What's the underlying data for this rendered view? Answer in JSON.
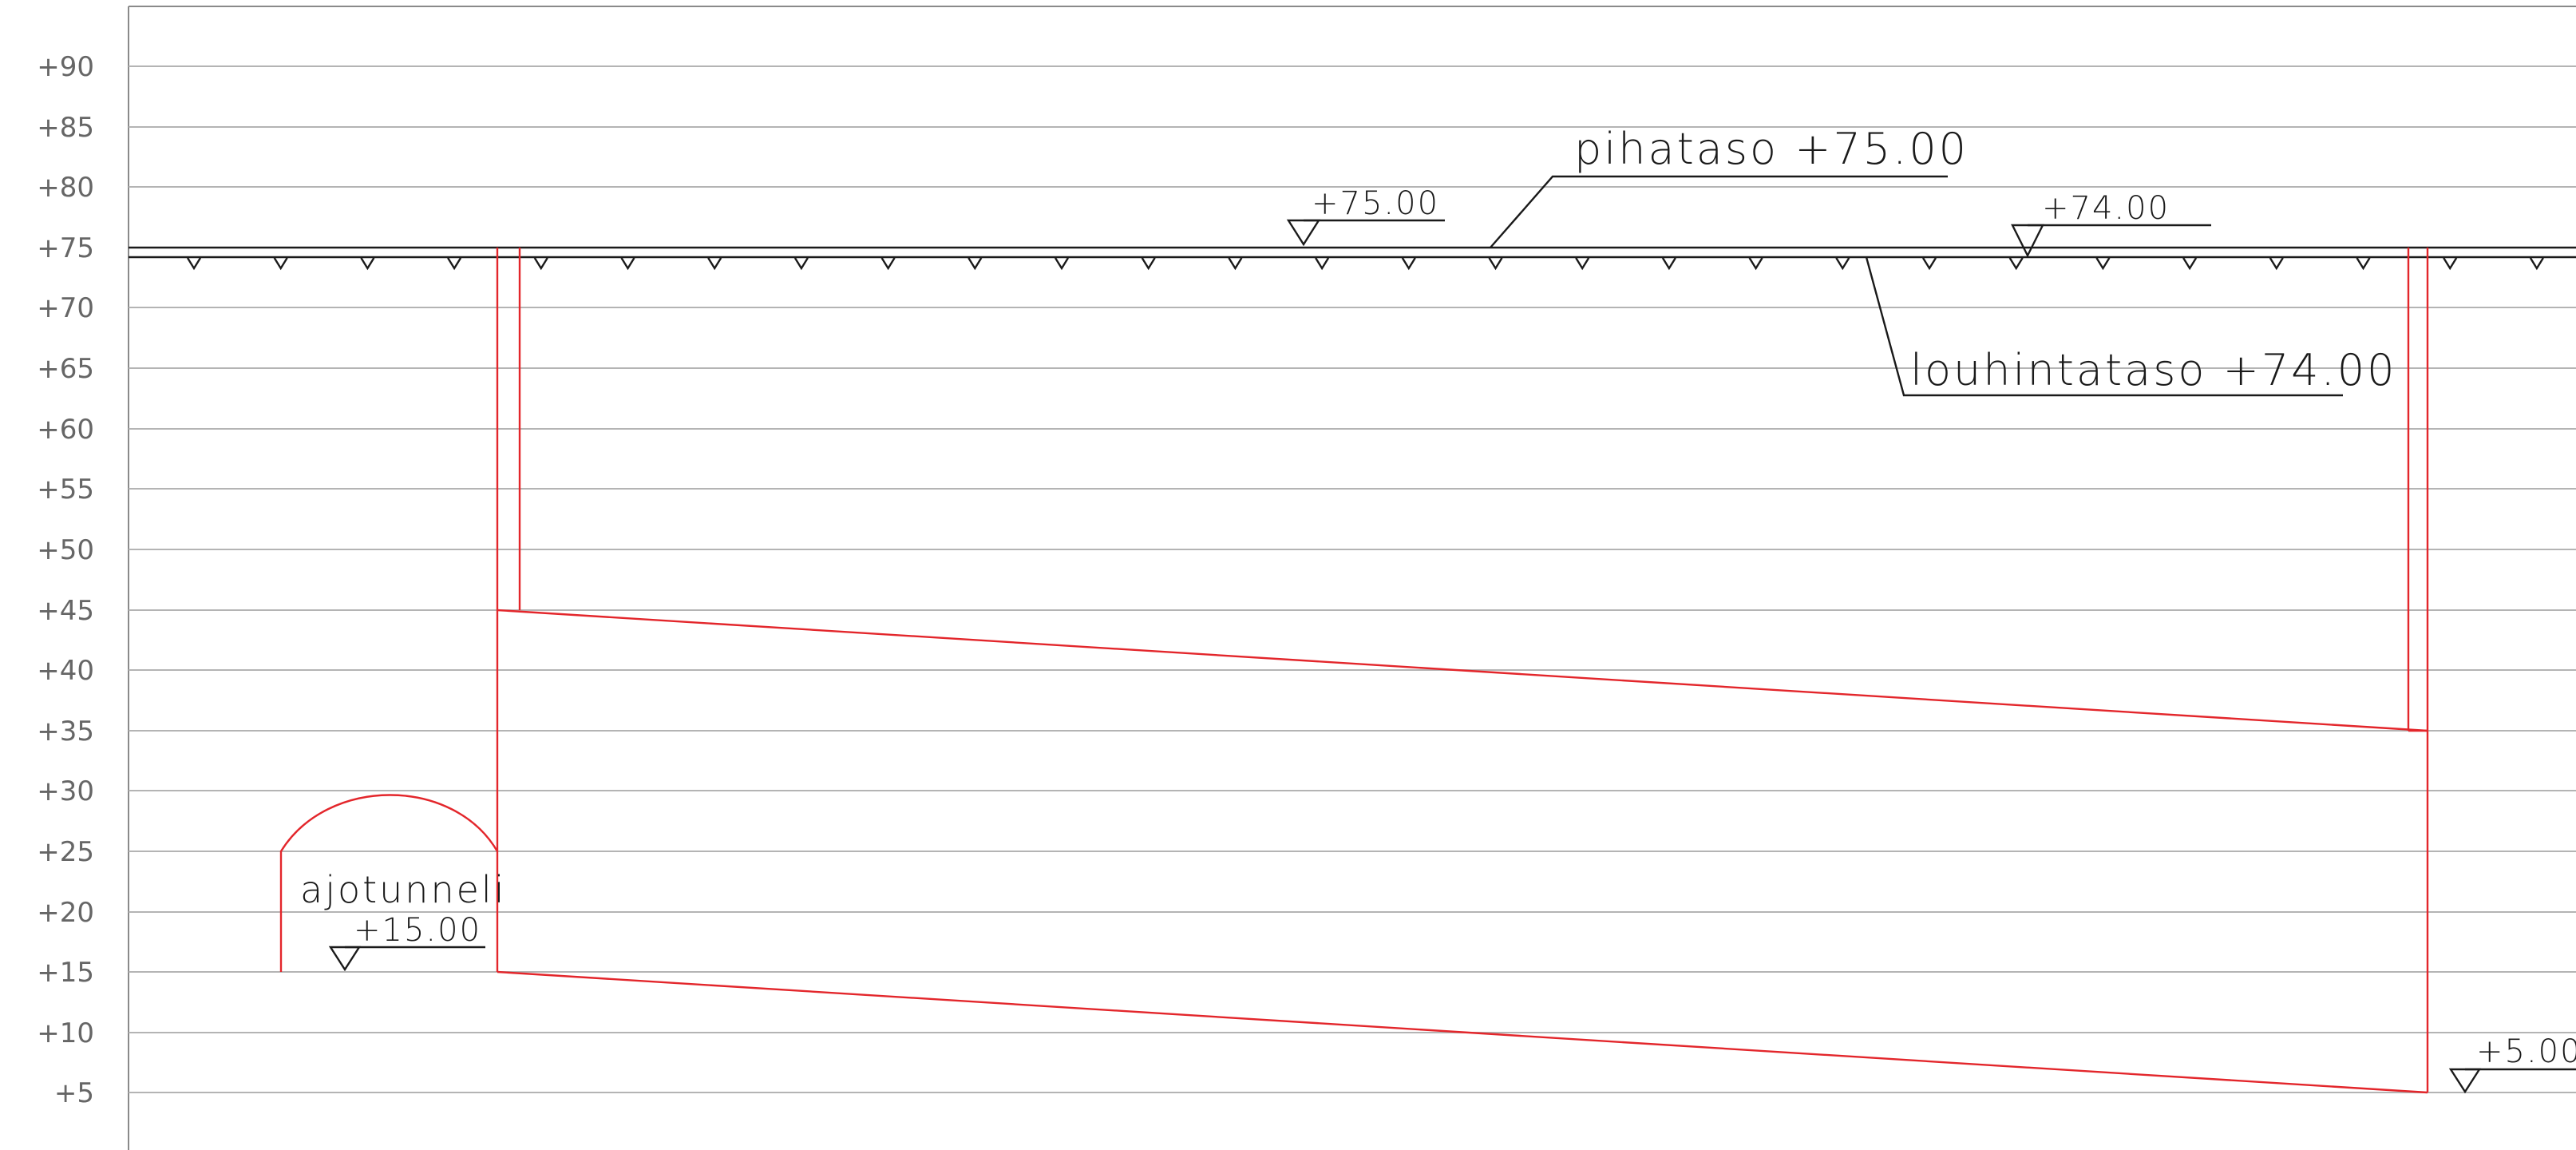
{
  "elevation_axis": {
    "ticks": [
      90,
      85,
      80,
      75,
      70,
      65,
      60,
      55,
      50,
      45,
      40,
      35,
      30,
      25,
      20,
      15,
      10,
      5
    ],
    "tick_labels": [
      "+90",
      "+85",
      "+80",
      "+75",
      "+70",
      "+65",
      "+60",
      "+55",
      "+50",
      "+45",
      "+40",
      "+35",
      "+30",
      "+25",
      "+20",
      "+15",
      "+10",
      "+5"
    ]
  },
  "labels": {
    "pihataso": "pihataso +75.00",
    "louhintataso": "louhintataso +74.00",
    "ajotunneli": "ajotunneli"
  },
  "elevation_marks": {
    "mark_75": "+75.00",
    "mark_74": "+74.00",
    "mark_15": "+15.00",
    "mark_5": "+5.00"
  },
  "colors": {
    "structure": "#e3262b",
    "ground": "#1a1a1a",
    "grid": "#b4b4b4",
    "axis_text": "#666666"
  }
}
